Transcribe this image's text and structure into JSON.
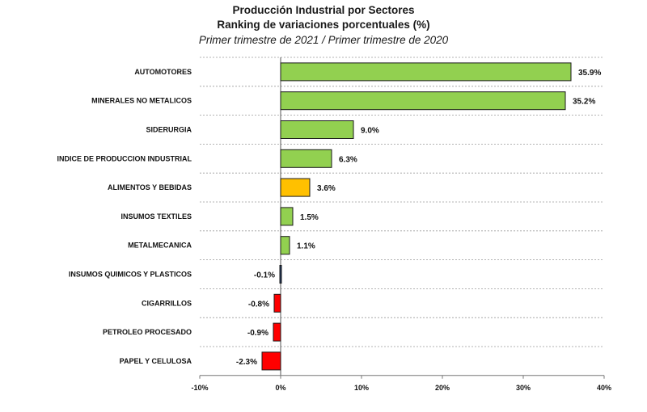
{
  "chart_data": {
    "type": "bar",
    "orientation": "horizontal",
    "title": "Producción Industrial por Sectores",
    "subtitle": "Ranking de variaciones porcentuales (%)",
    "period": "Primer trimestre de 2021 / Primer trimestre de 2020",
    "categories": [
      "AUTOMOTORES",
      "MINERALES NO METALICOS",
      "SIDERURGIA",
      "INDICE DE PRODUCCION INDUSTRIAL",
      "ALIMENTOS Y BEBIDAS",
      "INSUMOS TEXTILES",
      "METALMECANICA",
      "INSUMOS QUIMICOS Y PLASTICOS",
      "CIGARRILLOS",
      "PETROLEO PROCESADO",
      "PAPEL Y CELULOSA"
    ],
    "values": [
      35.9,
      35.2,
      9.0,
      6.3,
      3.6,
      1.5,
      1.1,
      -0.1,
      -0.8,
      -0.9,
      -2.3
    ],
    "value_labels": [
      "35.9%",
      "35.2%",
      "9.0%",
      "6.3%",
      "3.6%",
      "1.5%",
      "1.1%",
      "-0.1%",
      "-0.8%",
      "-0.9%",
      "-2.3%"
    ],
    "bar_colors": [
      "#92d050",
      "#92d050",
      "#92d050",
      "#92d050",
      "#ffc000",
      "#92d050",
      "#92d050",
      "#1f3864",
      "#ff0000",
      "#ff0000",
      "#ff0000"
    ],
    "xlim": [
      -10,
      40
    ],
    "xticks": [
      -10,
      0,
      10,
      20,
      30,
      40
    ],
    "xtick_labels": [
      "-10%",
      "0%",
      "10%",
      "20%",
      "30%",
      "40%"
    ],
    "grid": "horizontal dashed",
    "xlabel": "",
    "ylabel": ""
  }
}
